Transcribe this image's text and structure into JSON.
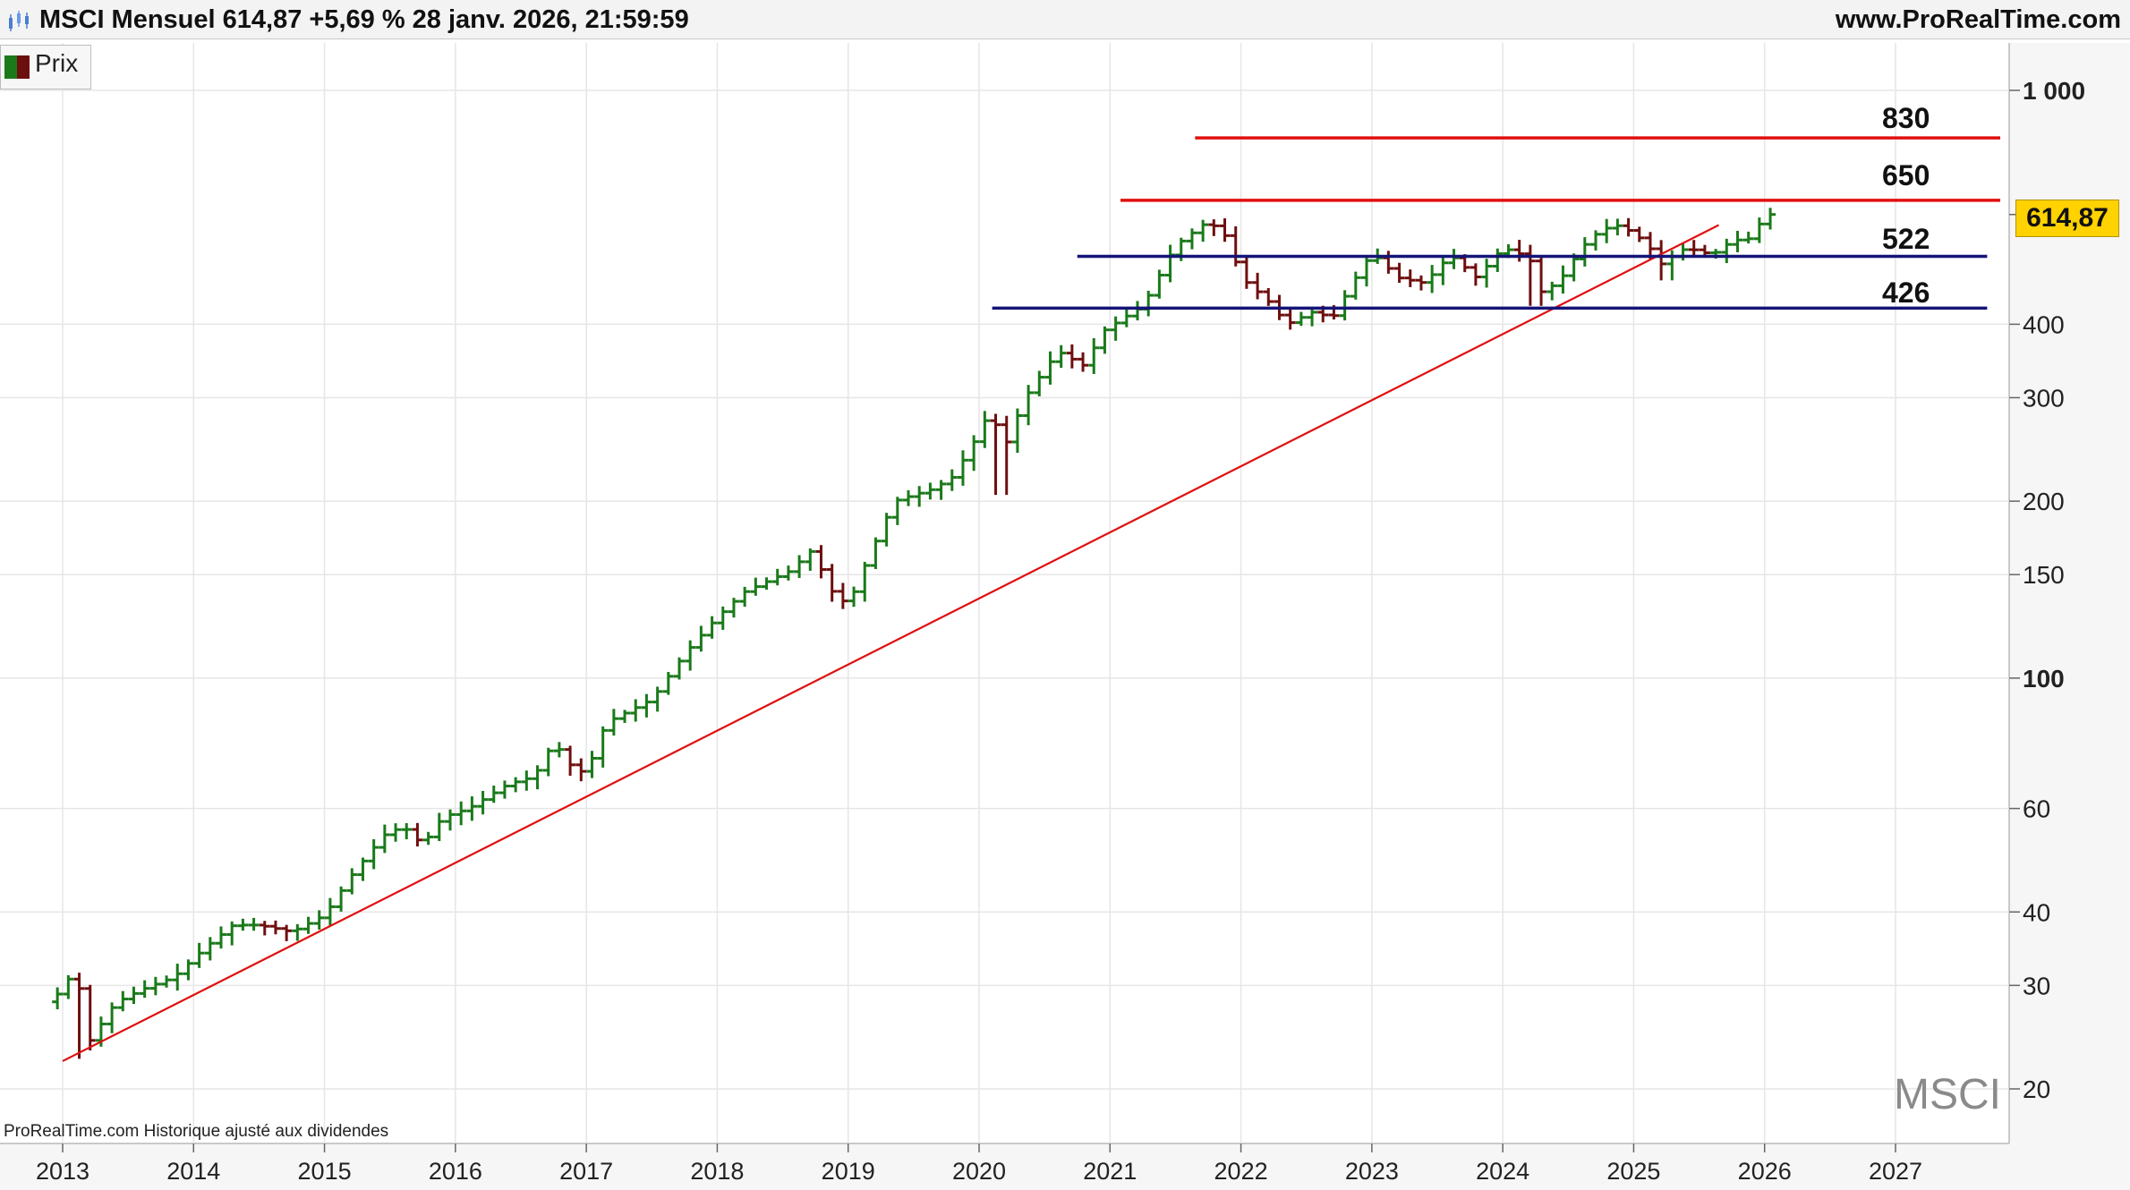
{
  "header": {
    "title": "MSCI Mensuel 614,87 +5,69 % 28 janv. 2026, 21:59:59",
    "site": "www.ProRealTime.com",
    "logo_icon": "candlestick-icon"
  },
  "legend": {
    "label": "Prix",
    "colors": {
      "up": "#1a7a1a",
      "down": "#6e0f0f"
    }
  },
  "footer": {
    "credit": "ProRealTime.com  Historique ajusté aux dividendes",
    "watermark": "MSCI"
  },
  "current_price": {
    "label": "614,87",
    "value": 614.87,
    "color": "#ffd200"
  },
  "chart_data": {
    "type": "ohlc",
    "title": "MSCI Mensuel",
    "scale": "log",
    "ylim": [
      18.5,
      1150
    ],
    "xlim": [
      2012.95,
      2027.9
    ],
    "grid": true,
    "xticks": [
      2013,
      2014,
      2015,
      2016,
      2017,
      2018,
      2019,
      2020,
      2021,
      2022,
      2023,
      2024,
      2025,
      2026,
      2027
    ],
    "xtick_labels": [
      "2013",
      "2014",
      "2015",
      "2016",
      "2017",
      "2018",
      "2019",
      "2020",
      "2021",
      "2022",
      "2023",
      "2024",
      "2025",
      "2026",
      "2027"
    ],
    "yticks": [
      {
        "value": 1000,
        "label": "1 000",
        "bold": true
      },
      {
        "value": 400,
        "label": "400",
        "bold": false
      },
      {
        "value": 300,
        "label": "300",
        "bold": false
      },
      {
        "value": 200,
        "label": "200",
        "bold": false
      },
      {
        "value": 150,
        "label": "150",
        "bold": false
      },
      {
        "value": 100,
        "label": "100",
        "bold": true
      },
      {
        "value": 60,
        "label": "60",
        "bold": false
      },
      {
        "value": 40,
        "label": "40",
        "bold": false
      },
      {
        "value": 30,
        "label": "30",
        "bold": false
      },
      {
        "value": 20,
        "label": "20",
        "bold": false
      }
    ],
    "up_color": "#1a7a1a",
    "down_color": "#6e0f0f",
    "anchors": [
      [
        2012.96,
        29
      ],
      [
        2013.1,
        32
      ],
      [
        2013.2,
        24
      ],
      [
        2013.4,
        28
      ],
      [
        2013.6,
        29.5
      ],
      [
        2013.85,
        31
      ],
      [
        2014.1,
        35
      ],
      [
        2014.3,
        38
      ],
      [
        2014.5,
        38
      ],
      [
        2014.75,
        37
      ],
      [
        2015.0,
        39.5
      ],
      [
        2015.2,
        46
      ],
      [
        2015.45,
        54
      ],
      [
        2015.6,
        56
      ],
      [
        2015.75,
        52
      ],
      [
        2015.9,
        58
      ],
      [
        2016.1,
        60
      ],
      [
        2016.4,
        66
      ],
      [
        2016.6,
        68
      ],
      [
        2016.75,
        78
      ],
      [
        2016.9,
        70
      ],
      [
        2017.0,
        69
      ],
      [
        2017.15,
        84
      ],
      [
        2017.5,
        92
      ],
      [
        2017.75,
        110
      ],
      [
        2018.0,
        127
      ],
      [
        2018.2,
        140
      ],
      [
        2018.55,
        152
      ],
      [
        2018.72,
        165
      ],
      [
        2018.88,
        140
      ],
      [
        2019.0,
        133
      ],
      [
        2019.15,
        160
      ],
      [
        2019.35,
        200
      ],
      [
        2019.65,
        210
      ],
      [
        2019.8,
        220
      ],
      [
        2019.95,
        250
      ],
      [
        2020.1,
        290
      ],
      [
        2020.17,
        240
      ],
      [
        2020.35,
        300
      ],
      [
        2020.6,
        360
      ],
      [
        2020.8,
        340
      ],
      [
        2020.95,
        390
      ],
      [
        2021.25,
        430
      ],
      [
        2021.5,
        545
      ],
      [
        2021.75,
        600
      ],
      [
        2021.9,
        560
      ],
      [
        2022.0,
        480
      ],
      [
        2022.2,
        440
      ],
      [
        2022.35,
        400
      ],
      [
        2022.55,
        420
      ],
      [
        2022.7,
        410
      ],
      [
        2022.85,
        470
      ],
      [
        2023.0,
        530
      ],
      [
        2023.2,
        480
      ],
      [
        2023.4,
        470
      ],
      [
        2023.6,
        525
      ],
      [
        2023.8,
        480
      ],
      [
        2024.0,
        540
      ],
      [
        2024.2,
        520
      ],
      [
        2024.3,
        450
      ],
      [
        2024.45,
        480
      ],
      [
        2024.6,
        540
      ],
      [
        2024.75,
        580
      ],
      [
        2024.9,
        590
      ],
      [
        2025.1,
        550
      ],
      [
        2025.2,
        505
      ],
      [
        2025.4,
        540
      ],
      [
        2025.6,
        525
      ],
      [
        2025.75,
        555
      ],
      [
        2025.9,
        560
      ],
      [
        2026.0,
        615
      ]
    ],
    "event_lows": [
      [
        2013.15,
        22.5
      ],
      [
        2020.17,
        205
      ],
      [
        2024.25,
        430
      ],
      [
        2025.25,
        475
      ]
    ],
    "levels": [
      {
        "value": 830,
        "label": "830",
        "color": "#e01010",
        "x_start": 2021.65,
        "x_end": 2027.8
      },
      {
        "value": 650,
        "label": "650",
        "color": "#e01010",
        "x_start": 2021.08,
        "x_end": 2027.8
      },
      {
        "value": 522,
        "label": "522",
        "color": "#141478",
        "x_start": 2020.75,
        "x_end": 2027.7
      },
      {
        "value": 426,
        "label": "426",
        "color": "#141478",
        "x_start": 2020.1,
        "x_end": 2027.7
      }
    ],
    "trendline": {
      "from": [
        2013.0,
        22.3
      ],
      "to": [
        2025.65,
        590
      ],
      "color": "#e01010"
    }
  }
}
